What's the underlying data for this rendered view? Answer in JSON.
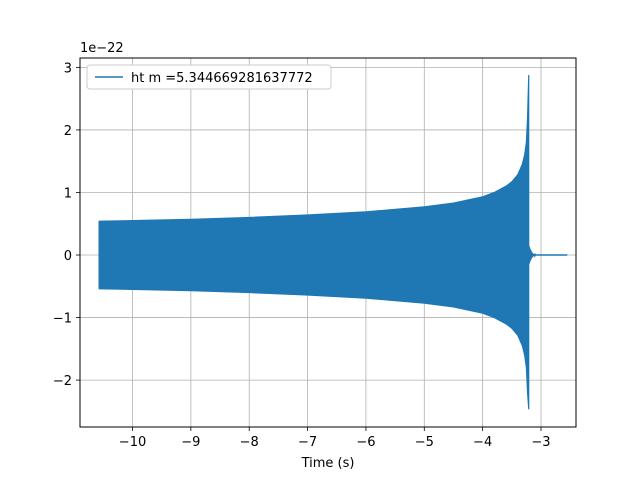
{
  "chart_data": {
    "type": "line",
    "xlabel": "Time (s)",
    "ylabel": "",
    "y_offset_text": "1e−22",
    "xlim": [
      -10.9,
      -2.4
    ],
    "ylim": [
      -2.75,
      3.15
    ],
    "grid": true,
    "legend_position": "top-left",
    "x_ticks": [
      {
        "value": -10,
        "label": "−10"
      },
      {
        "value": -9,
        "label": "−9"
      },
      {
        "value": -8,
        "label": "−8"
      },
      {
        "value": -7,
        "label": "−7"
      },
      {
        "value": -6,
        "label": "−6"
      },
      {
        "value": -5,
        "label": "−5"
      },
      {
        "value": -4,
        "label": "−4"
      },
      {
        "value": -3,
        "label": "−3"
      }
    ],
    "y_ticks": [
      {
        "value": -2,
        "label": "−2"
      },
      {
        "value": -1,
        "label": "−1"
      },
      {
        "value": 0,
        "label": "0"
      },
      {
        "value": 1,
        "label": "1"
      },
      {
        "value": 2,
        "label": "2"
      },
      {
        "value": 3,
        "label": "3"
      }
    ],
    "series": [
      {
        "name": "ht m =5.344669281637772",
        "color": "#1f77b4",
        "envelope": {
          "x": [
            -10.57,
            -10.0,
            -9.0,
            -8.0,
            -7.0,
            -6.0,
            -5.0,
            -4.5,
            -4.0,
            -3.8,
            -3.6,
            -3.5,
            -3.4,
            -3.32,
            -3.28,
            -3.25,
            -3.23,
            -3.21
          ],
          "upper": [
            0.54,
            0.55,
            0.57,
            0.6,
            0.64,
            0.69,
            0.77,
            0.83,
            0.93,
            1.0,
            1.1,
            1.17,
            1.28,
            1.45,
            1.6,
            1.8,
            2.2,
            2.87
          ],
          "lower": [
            -0.54,
            -0.55,
            -0.57,
            -0.6,
            -0.64,
            -0.69,
            -0.77,
            -0.83,
            -0.93,
            -1.0,
            -1.1,
            -1.17,
            -1.28,
            -1.45,
            -1.6,
            -1.8,
            -2.2,
            -2.46
          ]
        },
        "ringdown": {
          "x": [
            -3.21,
            -3.19,
            -3.17,
            -3.15,
            -3.12,
            -3.09
          ],
          "amplitude": [
            0.15,
            0.1,
            0.06,
            0.03,
            0.01,
            0.0
          ]
        },
        "tail": {
          "x": [
            -3.09,
            -2.55
          ],
          "y": [
            0,
            0
          ]
        }
      }
    ]
  }
}
